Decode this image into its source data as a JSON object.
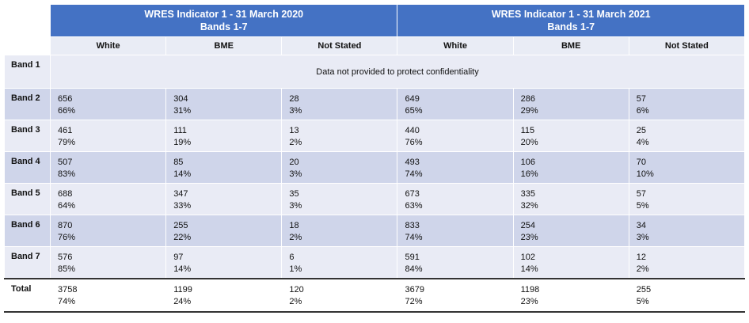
{
  "header": {
    "y2020": {
      "title": "WRES Indicator 1 - 31 March 2020",
      "subtitle": "Bands 1-7"
    },
    "y2021": {
      "title": "WRES Indicator 1 - 31 March 2021",
      "subtitle": "Bands 1-7"
    }
  },
  "columns": [
    "White",
    "BME",
    "Not Stated",
    "White",
    "BME",
    "Not Stated"
  ],
  "band1": {
    "label": "Band 1",
    "note": "Data not provided to protect confidentiality"
  },
  "rows": [
    {
      "label": "Band 2",
      "cells": [
        [
          "656",
          "66%"
        ],
        [
          "304",
          "31%"
        ],
        [
          "28",
          "3%"
        ],
        [
          "649",
          "65%"
        ],
        [
          "286",
          "29%"
        ],
        [
          "57",
          "6%"
        ]
      ]
    },
    {
      "label": "Band 3",
      "cells": [
        [
          "461",
          "79%"
        ],
        [
          "111",
          "19%"
        ],
        [
          "13",
          "2%"
        ],
        [
          "440",
          "76%"
        ],
        [
          "115",
          "20%"
        ],
        [
          "25",
          "4%"
        ]
      ]
    },
    {
      "label": "Band 4",
      "cells": [
        [
          "507",
          "83%"
        ],
        [
          "85",
          "14%"
        ],
        [
          "20",
          "3%"
        ],
        [
          "493",
          "74%"
        ],
        [
          "106",
          "16%"
        ],
        [
          "70",
          "10%"
        ]
      ]
    },
    {
      "label": "Band 5",
      "cells": [
        [
          "688",
          "64%"
        ],
        [
          "347",
          "33%"
        ],
        [
          "35",
          "3%"
        ],
        [
          "673",
          "63%"
        ],
        [
          "335",
          "32%"
        ],
        [
          "57",
          "5%"
        ]
      ]
    },
    {
      "label": "Band 6",
      "cells": [
        [
          "870",
          "76%"
        ],
        [
          "255",
          "22%"
        ],
        [
          "18",
          "2%"
        ],
        [
          "833",
          "74%"
        ],
        [
          "254",
          "23%"
        ],
        [
          "34",
          "3%"
        ]
      ]
    },
    {
      "label": "Band 7",
      "cells": [
        [
          "576",
          "85%"
        ],
        [
          "97",
          "14%"
        ],
        [
          "6",
          "1%"
        ],
        [
          "591",
          "84%"
        ],
        [
          "102",
          "14%"
        ],
        [
          "12",
          "2%"
        ]
      ]
    }
  ],
  "total": {
    "label": "Total",
    "cells": [
      [
        "3758",
        "74%"
      ],
      [
        "1199",
        "24%"
      ],
      [
        "120",
        "2%"
      ],
      [
        "3679",
        "72%"
      ],
      [
        "1198",
        "23%"
      ],
      [
        "255",
        "5%"
      ]
    ]
  },
  "colors": {
    "header": "#4472c4",
    "row_dark": "#cfd5ea",
    "row_light": "#e9ebf5"
  }
}
